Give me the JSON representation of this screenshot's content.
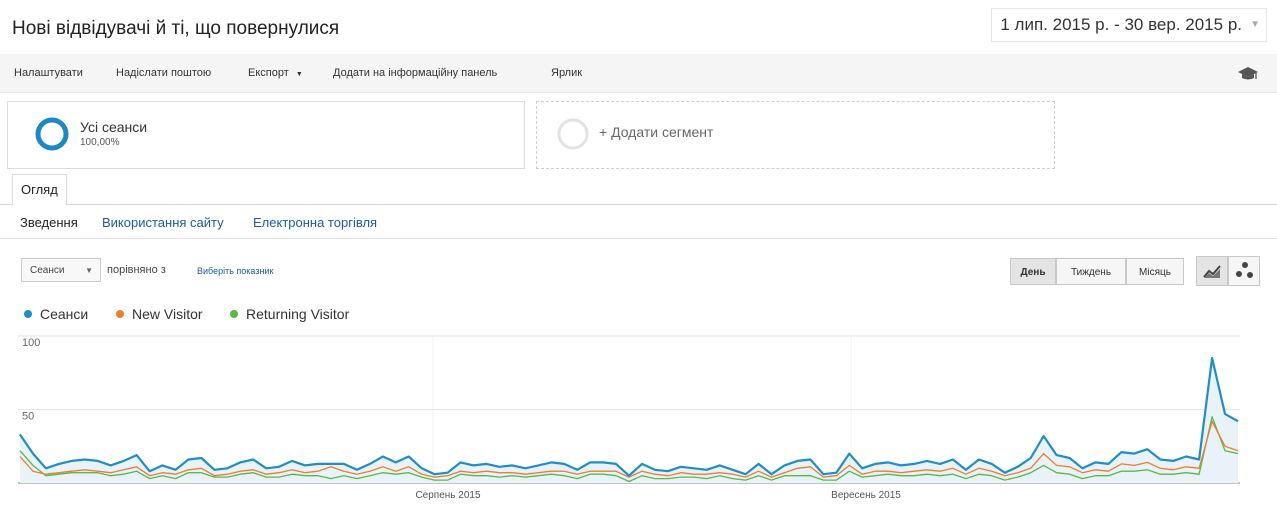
{
  "header": {
    "title": "Нові відвідувачі й ті, що повернулися",
    "date_range": "1 лип. 2015 р. - 30 вер. 2015 р."
  },
  "toolbar": {
    "items": [
      "Налаштувати",
      "Надіслати поштою",
      "Експорт",
      "Додати на інформаційну панель",
      "Ярлик"
    ],
    "icon": "graduation-cap-icon"
  },
  "segments": {
    "all": {
      "name": "Усі сеанси",
      "percent": "100,00%"
    },
    "add": {
      "label": "+ Додати сегмент"
    }
  },
  "tabs": {
    "overview": "Огляд"
  },
  "subnav": [
    "Зведення",
    "Використання сайту",
    "Електронна торгівля"
  ],
  "controls": {
    "metric": "Сеанси",
    "compare": "порівняно з",
    "pick_metric": "Виберіть показник",
    "day": "День",
    "week": "Тиждень",
    "month": "Місяць",
    "view_line_icon": "line-chart-icon",
    "view_scatter_icon": "scatter-icon"
  },
  "colors": {
    "sessions": "#1f8dc6",
    "new": "#ed7d31",
    "returning": "#58b947"
  },
  "chart_data": {
    "type": "line",
    "x_labels": [
      "Серпень 2015",
      "Вересень 2015"
    ],
    "y_ticks": [
      "100",
      "50"
    ],
    "ylim": [
      0,
      100
    ],
    "legend_placement": "top-left",
    "series": [
      {
        "name": "Сеанси",
        "values": [
          33,
          20,
          10,
          13,
          15,
          16,
          15,
          12,
          15,
          19,
          8,
          12,
          9,
          16,
          17,
          9,
          10,
          14,
          16,
          10,
          11,
          15,
          12,
          13,
          13,
          13,
          9,
          13,
          18,
          14,
          18,
          10,
          6,
          7,
          14,
          12,
          13,
          11,
          12,
          10,
          12,
          14,
          13,
          9,
          14,
          14,
          13,
          5,
          13,
          9,
          8,
          11,
          10,
          9,
          12,
          9,
          6,
          13,
          6,
          12,
          15,
          16,
          6,
          7,
          20,
          10,
          13,
          14,
          12,
          13,
          15,
          13,
          16,
          9,
          16,
          13,
          7,
          11,
          17,
          32,
          19,
          17,
          10,
          14,
          13,
          21,
          20,
          23,
          16,
          15,
          18,
          16,
          85,
          47,
          42
        ]
      },
      {
        "name": "New Visitor",
        "values": [
          18,
          8,
          6,
          7,
          8,
          9,
          8,
          7,
          9,
          11,
          5,
          7,
          6,
          9,
          10,
          5,
          6,
          8,
          9,
          6,
          7,
          9,
          7,
          8,
          11,
          8,
          6,
          8,
          11,
          8,
          11,
          6,
          4,
          5,
          8,
          7,
          8,
          7,
          7,
          6,
          7,
          8,
          8,
          6,
          8,
          8,
          8,
          4,
          8,
          6,
          5,
          7,
          6,
          6,
          7,
          6,
          4,
          8,
          4,
          7,
          10,
          11,
          4,
          5,
          12,
          6,
          8,
          8,
          7,
          8,
          9,
          8,
          10,
          6,
          10,
          8,
          5,
          7,
          10,
          20,
          12,
          11,
          7,
          9,
          8,
          13,
          12,
          14,
          10,
          9,
          11,
          10,
          42,
          25,
          22
        ]
      },
      {
        "name": "Returning Visitor",
        "values": [
          22,
          12,
          5,
          6,
          7,
          7,
          7,
          5,
          6,
          8,
          3,
          5,
          3,
          7,
          7,
          4,
          4,
          6,
          7,
          4,
          4,
          6,
          5,
          5,
          3,
          5,
          3,
          5,
          7,
          6,
          7,
          4,
          2,
          2,
          6,
          5,
          5,
          4,
          5,
          4,
          5,
          6,
          5,
          3,
          6,
          6,
          5,
          1,
          5,
          3,
          3,
          4,
          4,
          3,
          5,
          3,
          2,
          5,
          2,
          5,
          5,
          5,
          2,
          2,
          8,
          4,
          5,
          6,
          5,
          5,
          6,
          5,
          6,
          3,
          6,
          5,
          2,
          4,
          7,
          12,
          7,
          6,
          3,
          5,
          5,
          8,
          8,
          9,
          6,
          6,
          7,
          6,
          45,
          22,
          20
        ]
      }
    ]
  }
}
